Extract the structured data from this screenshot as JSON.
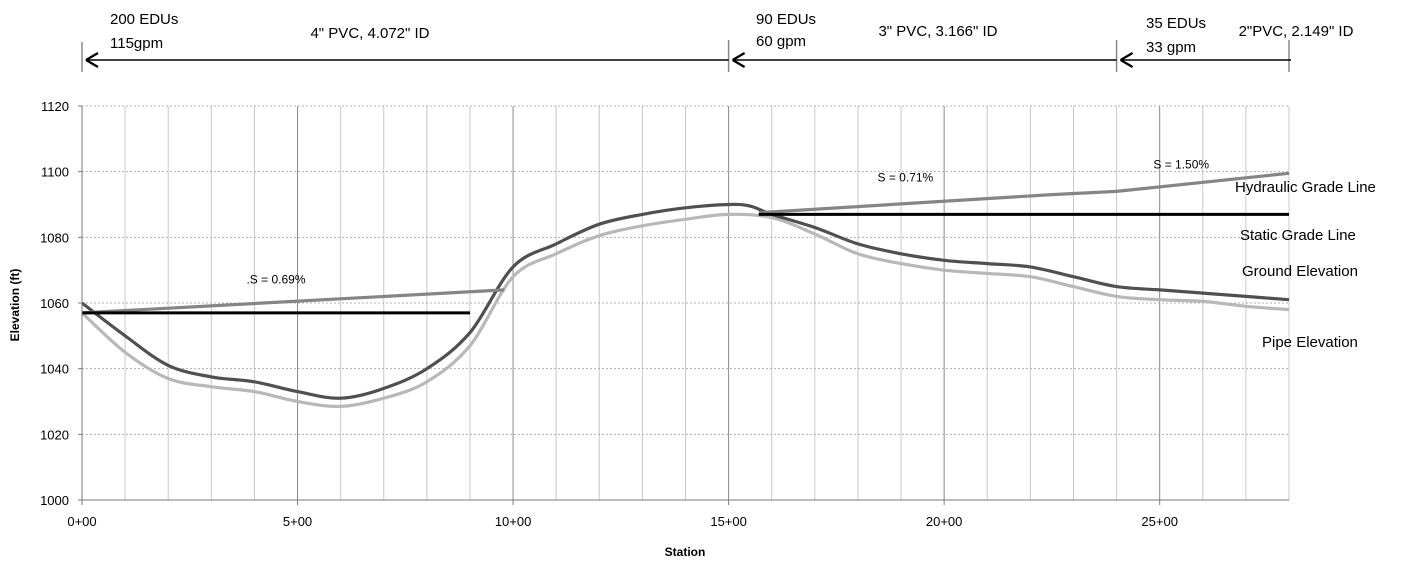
{
  "segments": [
    {
      "edus": "200 EDUs",
      "flow": "115gpm",
      "pipe": "4\" PVC, 4.072\" ID",
      "from": 0,
      "to": 1500
    },
    {
      "edus": "90 EDUs",
      "flow": "60 gpm",
      "pipe": "3\" PVC, 3.166\" ID",
      "from": 1500,
      "to": 2400
    },
    {
      "edus": "35 EDUs",
      "flow": "33 gpm",
      "pipe": "2\"PVC, 2.149\" ID",
      "from": 2400,
      "to": 2800
    }
  ],
  "chart_data": {
    "type": "line",
    "xlabel": "Station",
    "ylabel": "Elevation (ft)",
    "xlim": [
      0,
      2800
    ],
    "ylim": [
      1000,
      1120
    ],
    "xticks": [
      {
        "value": 0,
        "label": "0+00"
      },
      {
        "value": 500,
        "label": "5+00"
      },
      {
        "value": 1000,
        "label": "10+00"
      },
      {
        "value": 1500,
        "label": "15+00"
      },
      {
        "value": 2000,
        "label": "20+00"
      },
      {
        "value": 2500,
        "label": "25+00"
      }
    ],
    "yticks": [
      1000,
      1020,
      1040,
      1060,
      1080,
      1100,
      1120
    ],
    "grid": true,
    "series": [
      {
        "name": "Hydraulic Grade Line",
        "color": "#858585",
        "points": [
          [
            0,
            1057
          ],
          [
            980,
            1064
          ]
        ],
        "smooth": false
      },
      {
        "name": "Hydraulic Grade Line",
        "color": "#858585",
        "points": [
          [
            1570,
            1087.5
          ],
          [
            2250,
            1093
          ],
          [
            2400,
            1094
          ],
          [
            2800,
            1099.5
          ]
        ],
        "smooth": false
      },
      {
        "name": "Static Grade Line",
        "color": "#000000",
        "points": [
          [
            0,
            1057
          ],
          [
            900,
            1057
          ]
        ],
        "smooth": false
      },
      {
        "name": "Static Grade Line",
        "color": "#000000",
        "points": [
          [
            1570,
            1087
          ],
          [
            2800,
            1087
          ]
        ],
        "smooth": false
      },
      {
        "name": "Ground Elevation",
        "color": "#505050",
        "points": [
          [
            0,
            1060
          ],
          [
            100,
            1050
          ],
          [
            200,
            1041
          ],
          [
            300,
            1037.5
          ],
          [
            400,
            1036
          ],
          [
            500,
            1033
          ],
          [
            600,
            1031
          ],
          [
            700,
            1034
          ],
          [
            800,
            1040
          ],
          [
            900,
            1051
          ],
          [
            1000,
            1071
          ],
          [
            1100,
            1078
          ],
          [
            1200,
            1084
          ],
          [
            1300,
            1087
          ],
          [
            1400,
            1089
          ],
          [
            1500,
            1090
          ],
          [
            1550,
            1089.5
          ],
          [
            1600,
            1087
          ],
          [
            1700,
            1083
          ],
          [
            1800,
            1078
          ],
          [
            1900,
            1075
          ],
          [
            2000,
            1073
          ],
          [
            2100,
            1072
          ],
          [
            2200,
            1071
          ],
          [
            2300,
            1068
          ],
          [
            2400,
            1065
          ],
          [
            2500,
            1064
          ],
          [
            2600,
            1063
          ],
          [
            2700,
            1062
          ],
          [
            2800,
            1061
          ]
        ],
        "smooth": true
      },
      {
        "name": "Pipe Elevation",
        "color": "#b8b8b8",
        "points": [
          [
            0,
            1057
          ],
          [
            100,
            1045
          ],
          [
            200,
            1037
          ],
          [
            300,
            1034.5
          ],
          [
            400,
            1033
          ],
          [
            500,
            1030
          ],
          [
            600,
            1028.5
          ],
          [
            700,
            1031
          ],
          [
            800,
            1036
          ],
          [
            900,
            1047
          ],
          [
            1000,
            1068
          ],
          [
            1100,
            1075
          ],
          [
            1200,
            1080.5
          ],
          [
            1300,
            1083.5
          ],
          [
            1400,
            1085.5
          ],
          [
            1500,
            1087
          ],
          [
            1600,
            1086
          ],
          [
            1700,
            1081
          ],
          [
            1800,
            1075
          ],
          [
            1900,
            1072
          ],
          [
            2000,
            1070
          ],
          [
            2100,
            1069
          ],
          [
            2200,
            1068
          ],
          [
            2300,
            1065
          ],
          [
            2400,
            1062
          ],
          [
            2500,
            1061
          ],
          [
            2600,
            1060.5
          ],
          [
            2700,
            1059
          ],
          [
            2800,
            1058
          ]
        ],
        "smooth": true
      }
    ],
    "series_labels": [
      "Hydraulic Grade Line",
      "Static Grade Line",
      "Ground Elevation",
      "Pipe Elevation"
    ],
    "annotations": [
      {
        "text": ".S = 0.69%",
        "x": 450,
        "y": 1066
      },
      {
        "text": "S = 0.71%",
        "x": 1910,
        "y": 1097
      },
      {
        "text": "S = 1.50%",
        "x": 2550,
        "y": 1101
      }
    ]
  }
}
